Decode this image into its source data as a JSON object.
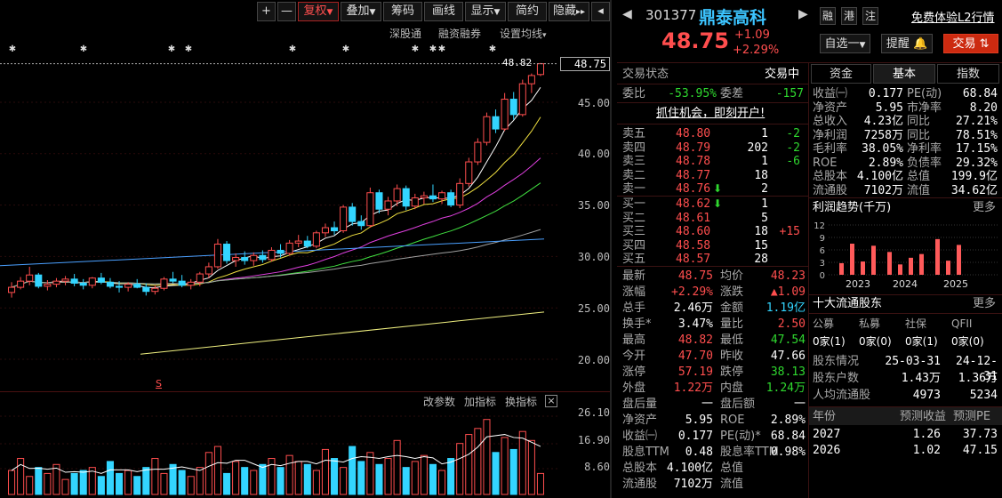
{
  "toolbar": {
    "plus": "+",
    "minus": "—",
    "fuquan": "复权",
    "diejia": "叠加",
    "choumа": "筹码",
    "huaxian": "画线",
    "xianshi": "显示",
    "jianyue": "简约",
    "yincang": "隐藏"
  },
  "chart_links": {
    "shengutong": "深股通",
    "rongzi": "融资融券",
    "junxian": "设置均线"
  },
  "chart": {
    "price_ticks": [
      "45.00",
      "40.00",
      "35.00",
      "30.00",
      "25.00",
      "20.00"
    ],
    "current_price_label": "48.75",
    "high_marker": "48.82",
    "volume_ticks": [
      "26.10",
      "16.90",
      "8.60"
    ],
    "volume_tools": {
      "gaicanshu": "改参数",
      "jiazhibiao": "加指标",
      "huanzhibiao": "换指标",
      "close": "×"
    },
    "s_marker": "S"
  },
  "chart_data": {
    "type": "candlestick",
    "ylim": [
      18.5,
      50
    ],
    "candles": [
      [
        26.5,
        27.5,
        26.0,
        27.0
      ],
      [
        27.0,
        28.0,
        26.8,
        27.6
      ],
      [
        27.6,
        29.0,
        27.2,
        28.2
      ],
      [
        28.2,
        28.4,
        26.9,
        27.1
      ],
      [
        27.1,
        27.7,
        26.7,
        27.3
      ],
      [
        27.3,
        27.9,
        27.0,
        27.6
      ],
      [
        27.6,
        28.1,
        27.2,
        27.8
      ],
      [
        27.8,
        28.3,
        27.1,
        27.4
      ],
      [
        27.4,
        27.8,
        26.8,
        27.2
      ],
      [
        27.2,
        28.0,
        26.9,
        27.9
      ],
      [
        27.9,
        28.4,
        27.3,
        27.5
      ],
      [
        27.5,
        27.9,
        26.9,
        27.1
      ],
      [
        27.1,
        27.6,
        26.5,
        27.0
      ],
      [
        27.0,
        27.5,
        26.6,
        27.3
      ],
      [
        27.3,
        27.8,
        26.9,
        27.0
      ],
      [
        27.0,
        27.4,
        26.2,
        26.6
      ],
      [
        26.6,
        27.2,
        26.3,
        26.9
      ],
      [
        26.9,
        28.0,
        26.7,
        27.8
      ],
      [
        27.8,
        28.5,
        27.4,
        27.6
      ],
      [
        27.6,
        28.2,
        27.0,
        27.2
      ],
      [
        27.2,
        27.8,
        26.8,
        27.5
      ],
      [
        27.5,
        28.5,
        27.1,
        28.3
      ],
      [
        28.3,
        29.4,
        27.9,
        29.0
      ],
      [
        29.0,
        31.7,
        28.8,
        31.2
      ],
      [
        31.2,
        31.5,
        29.3,
        29.6
      ],
      [
        29.6,
        30.3,
        29.0,
        29.9
      ],
      [
        29.9,
        30.5,
        29.2,
        29.6
      ],
      [
        29.6,
        30.4,
        29.1,
        30.1
      ],
      [
        30.1,
        30.6,
        29.4,
        29.7
      ],
      [
        29.7,
        30.9,
        29.5,
        30.6
      ],
      [
        30.6,
        31.2,
        29.9,
        30.3
      ],
      [
        30.3,
        31.6,
        30.1,
        31.3
      ],
      [
        31.3,
        32.1,
        30.9,
        31.5
      ],
      [
        31.5,
        32.0,
        30.8,
        31.0
      ],
      [
        31.0,
        32.5,
        30.8,
        32.3
      ],
      [
        32.3,
        33.2,
        31.9,
        32.8
      ],
      [
        32.8,
        33.4,
        32.1,
        32.5
      ],
      [
        32.5,
        35.0,
        32.3,
        34.8
      ],
      [
        34.8,
        35.2,
        33.0,
        33.4
      ],
      [
        33.4,
        34.0,
        32.6,
        33.0
      ],
      [
        33.0,
        36.7,
        32.8,
        36.2
      ],
      [
        36.2,
        36.5,
        34.2,
        34.6
      ],
      [
        34.6,
        35.8,
        34.0,
        35.4
      ],
      [
        35.4,
        37.0,
        34.9,
        36.6
      ],
      [
        36.6,
        36.9,
        34.5,
        34.9
      ],
      [
        34.9,
        36.1,
        34.6,
        35.7
      ],
      [
        35.7,
        36.3,
        35.1,
        35.9
      ],
      [
        35.9,
        37.0,
        35.3,
        35.6
      ],
      [
        35.6,
        36.4,
        35.1,
        36.2
      ],
      [
        36.2,
        36.5,
        34.8,
        35.0
      ],
      [
        35.0,
        37.6,
        34.7,
        37.1
      ],
      [
        37.1,
        39.6,
        36.8,
        39.2
      ],
      [
        39.2,
        41.5,
        38.9,
        41.1
      ],
      [
        41.1,
        44.0,
        40.8,
        43.6
      ],
      [
        43.6,
        44.3,
        42.0,
        42.4
      ],
      [
        42.4,
        45.9,
        42.2,
        45.3
      ],
      [
        45.3,
        46.0,
        43.3,
        43.8
      ],
      [
        43.8,
        47.2,
        43.6,
        46.8
      ],
      [
        46.8,
        47.8,
        45.9,
        47.6
      ],
      [
        47.7,
        48.82,
        47.54,
        48.75
      ]
    ],
    "volumes": [
      8,
      12,
      6,
      9,
      7,
      10,
      5,
      7,
      8,
      9,
      6,
      11,
      7,
      8,
      6,
      9,
      12,
      7,
      10,
      8,
      6,
      9,
      14,
      16,
      7,
      11,
      9,
      8,
      10,
      12,
      9,
      13,
      11,
      10,
      8,
      15,
      12,
      9,
      16,
      11,
      14,
      10,
      12,
      18,
      9,
      11,
      13,
      10,
      8,
      12,
      17,
      20,
      22,
      25,
      14,
      19,
      15,
      21,
      18,
      7
    ]
  },
  "stock": {
    "code": "301377",
    "name": "鼎泰高科",
    "price": "48.75",
    "change": "+1.09",
    "change_pct": "+2.29%",
    "tags": [
      "融",
      "港",
      "注"
    ],
    "free_link": "免费体验L2行情"
  },
  "actions": {
    "zixuan": "自选",
    "zixuan_minus": "一",
    "tixing": "提醒",
    "jiaoyi": "交易"
  },
  "trade_state": {
    "label": "交易状态",
    "value": "交易中"
  },
  "weibi": {
    "label": "委比",
    "value": "-53.95%",
    "cha_label": "委差",
    "cha_value": "-157"
  },
  "promo": "抓住机会，即刻开户!",
  "asks": [
    {
      "label": "卖五",
      "price": "48.80",
      "vol": "1",
      "chg": "-2"
    },
    {
      "label": "卖四",
      "price": "48.79",
      "vol": "202",
      "chg": "-2"
    },
    {
      "label": "卖三",
      "price": "48.78",
      "vol": "1",
      "chg": "-6"
    },
    {
      "label": "卖二",
      "price": "48.77",
      "vol": "18",
      "chg": ""
    },
    {
      "label": "卖一",
      "price": "48.76",
      "vol": "2",
      "chg": ""
    }
  ],
  "bids": [
    {
      "label": "买一",
      "price": "48.62",
      "vol": "1",
      "chg": ""
    },
    {
      "label": "买二",
      "price": "48.61",
      "vol": "5",
      "chg": ""
    },
    {
      "label": "买三",
      "price": "48.60",
      "vol": "18",
      "chg": "+15"
    },
    {
      "label": "买四",
      "price": "48.58",
      "vol": "15",
      "chg": ""
    },
    {
      "label": "买五",
      "price": "48.57",
      "vol": "28",
      "chg": ""
    }
  ],
  "quote": [
    {
      "l1": "最新",
      "v1": "48.75",
      "c1": "red",
      "l2": "均价",
      "v2": "48.23",
      "c2": "red"
    },
    {
      "l1": "涨幅",
      "v1": "+2.29%",
      "c1": "red",
      "l2": "涨跌",
      "v2": "▲1.09",
      "c2": "red"
    },
    {
      "l1": "总手",
      "v1": "2.46万",
      "c1": "white",
      "l2": "金额",
      "v2": "1.19亿",
      "c2": "cyan"
    },
    {
      "l1": "换手*",
      "v1": "3.47%",
      "c1": "white",
      "l2": "量比",
      "v2": "2.50",
      "c2": "red"
    },
    {
      "l1": "最高",
      "v1": "48.82",
      "c1": "red",
      "l2": "最低",
      "v2": "47.54",
      "c2": "green"
    },
    {
      "l1": "今开",
      "v1": "47.70",
      "c1": "red",
      "l2": "昨收",
      "v2": "47.66",
      "c2": "white"
    },
    {
      "l1": "涨停",
      "v1": "57.19",
      "c1": "red",
      "l2": "跌停",
      "v2": "38.13",
      "c2": "green"
    },
    {
      "l1": "外盘",
      "v1": "1.22万",
      "c1": "red",
      "l2": "内盘",
      "v2": "1.24万",
      "c2": "green"
    },
    {
      "l1": "盘后量",
      "v1": "一",
      "c1": "white",
      "l2": "盘后额",
      "v2": "一",
      "c2": "white"
    },
    {
      "l1": "净资产",
      "v1": "5.95",
      "c1": "white",
      "l2": "ROE",
      "v2": "2.89%",
      "c2": "white"
    },
    {
      "l1": "收益㈠",
      "v1": "0.177",
      "c1": "white",
      "l2": "PE(动)*",
      "v2": "68.84",
      "c2": "white"
    },
    {
      "l1": "股息TTM",
      "v1": "0.48",
      "c1": "white",
      "l2": "股息率TTM",
      "v2": "0.98%",
      "c2": "white"
    },
    {
      "l1": "总股本",
      "v1": "4.100亿",
      "c1": "white",
      "l2": "总值",
      "v2": "",
      "c2": "white"
    },
    {
      "l1": "流通股",
      "v1": "7102万",
      "c1": "white",
      "l2": "流值",
      "v2": "",
      "c2": "white"
    }
  ],
  "right_tabs": [
    "资金",
    "基本",
    "指数"
  ],
  "fundamentals": [
    {
      "l1": "收益㈠",
      "v1": "0.177",
      "l2": "PE(动)",
      "v2": "68.84"
    },
    {
      "l1": "净资产",
      "v1": "5.95",
      "l2": "市净率",
      "v2": "8.20"
    },
    {
      "l1": "总收入",
      "v1": "4.23亿",
      "l2": "同比",
      "v2": "27.21%"
    },
    {
      "l1": "净利润",
      "v1": "7258万",
      "l2": "同比",
      "v2": "78.51%"
    },
    {
      "l1": "毛利率",
      "v1": "38.05%",
      "l2": "净利率",
      "v2": "17.15%"
    },
    {
      "l1": "ROE",
      "v1": "2.89%",
      "l2": "负债率",
      "v2": "29.32%"
    },
    {
      "l1": "总股本",
      "v1": "4.100亿",
      "l2": "总值",
      "v2": "199.9亿"
    },
    {
      "l1": "流通股",
      "v1": "7102万",
      "l2": "流值",
      "v2": "34.62亿"
    }
  ],
  "profit_trend": {
    "title": "利润趋势(千万)",
    "more": "更多",
    "y_ticks": [
      "12",
      "9",
      "6",
      "3",
      "0"
    ],
    "x_labels": [
      "2023",
      "2024",
      "2025"
    ],
    "values": [
      2.8,
      7.5,
      3.2,
      7.0,
      5.5,
      2.5,
      4.1,
      5.0,
      8.6,
      3.4,
      7.2
    ]
  },
  "top_holders": {
    "title": "十大流通股东",
    "more": "更多",
    "categories": [
      {
        "label": "公募",
        "value": "0家(1)"
      },
      {
        "label": "私募",
        "value": "0家(0)"
      },
      {
        "label": "社保",
        "value": "0家(1)"
      },
      {
        "label": "QFII",
        "value": "0家(0)"
      }
    ],
    "rows": [
      {
        "label": "股东情况",
        "a": "25-03-31",
        "b": "24-12-31"
      },
      {
        "label": "股东户数",
        "a": "1.43万",
        "b": "1.36万"
      },
      {
        "label": "人均流通股",
        "a": "4973",
        "b": "5234"
      }
    ]
  },
  "forecast": {
    "headers": [
      "年份",
      "预测收益",
      "预测PE"
    ],
    "rows": [
      [
        "2027",
        "1.26",
        "37.73"
      ],
      [
        "2026",
        "1.02",
        "47.15"
      ]
    ]
  }
}
